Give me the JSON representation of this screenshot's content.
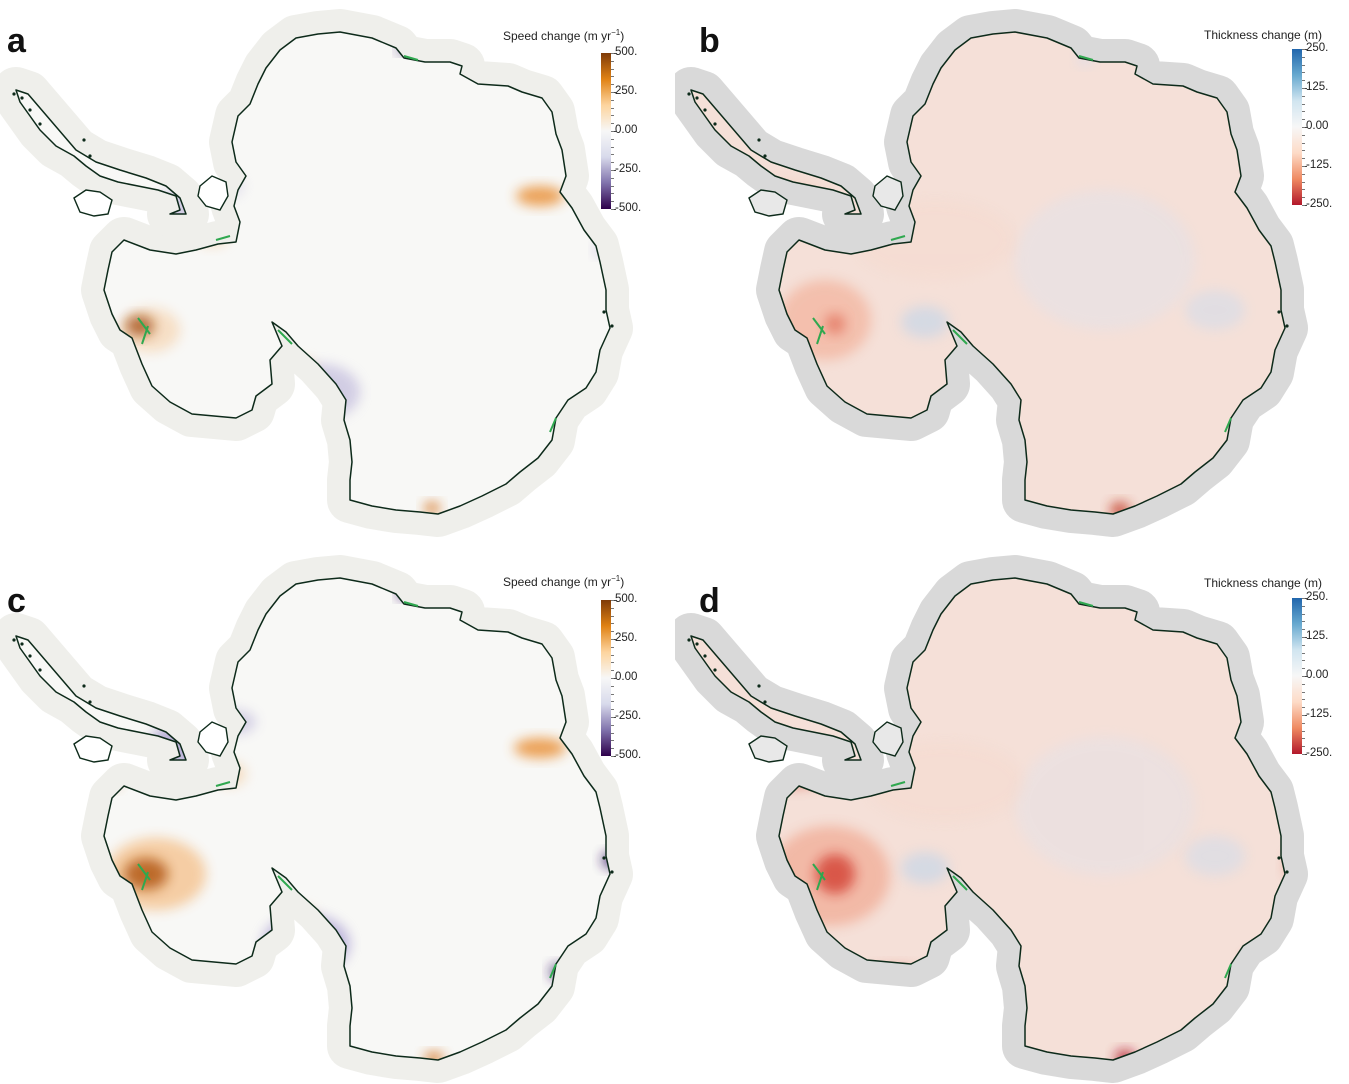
{
  "panels": [
    {
      "letter": "a",
      "kind": "speed",
      "colorbar": {
        "title": "Speed change (m yr",
        "title_sup": "−1",
        "title_end": ")",
        "ticks": [
          "500.",
          "250.",
          "0.00",
          "-250.",
          "-500."
        ],
        "colors": [
          "#7f3b08",
          "#e08214",
          "#fdd49e",
          "#f7f7f7",
          "#d8daeb",
          "#8073ac",
          "#2d004b"
        ]
      }
    },
    {
      "letter": "b",
      "kind": "thickness",
      "colorbar": {
        "title": "Thickness change (m)",
        "title_sup": "",
        "title_end": "",
        "ticks": [
          "250.",
          "125.",
          "0.00",
          "-125.",
          "-250."
        ],
        "colors": [
          "#2166ac",
          "#67a9cf",
          "#d1e5f0",
          "#f7f7f7",
          "#fddbc7",
          "#ef8a62",
          "#b2182b"
        ]
      }
    },
    {
      "letter": "c",
      "kind": "speed",
      "colorbar": {
        "title": "Speed change (m yr",
        "title_sup": "−1",
        "title_end": ")",
        "ticks": [
          "500.",
          "250.",
          "0.00",
          "-250.",
          "-500."
        ],
        "colors": [
          "#7f3b08",
          "#e08214",
          "#fdd49e",
          "#f7f7f7",
          "#d8daeb",
          "#8073ac",
          "#2d004b"
        ]
      }
    },
    {
      "letter": "d",
      "kind": "thickness",
      "colorbar": {
        "title": "Thickness change (m)",
        "title_sup": "",
        "title_end": "",
        "ticks": [
          "250.",
          "125.",
          "0.00",
          "-125.",
          "-250."
        ],
        "colors": [
          "#2166ac",
          "#67a9cf",
          "#d1e5f0",
          "#f7f7f7",
          "#fddbc7",
          "#ef8a62",
          "#b2182b"
        ]
      }
    }
  ],
  "colors": {
    "coastline": "#0d2a1a",
    "grounding_line": "#2fa84f",
    "speed_land": "#f8f8f6",
    "speed_halo": "#efefeb",
    "thickness_halo": "#d9d9d9",
    "thickness_land": "#f5e0d8"
  }
}
